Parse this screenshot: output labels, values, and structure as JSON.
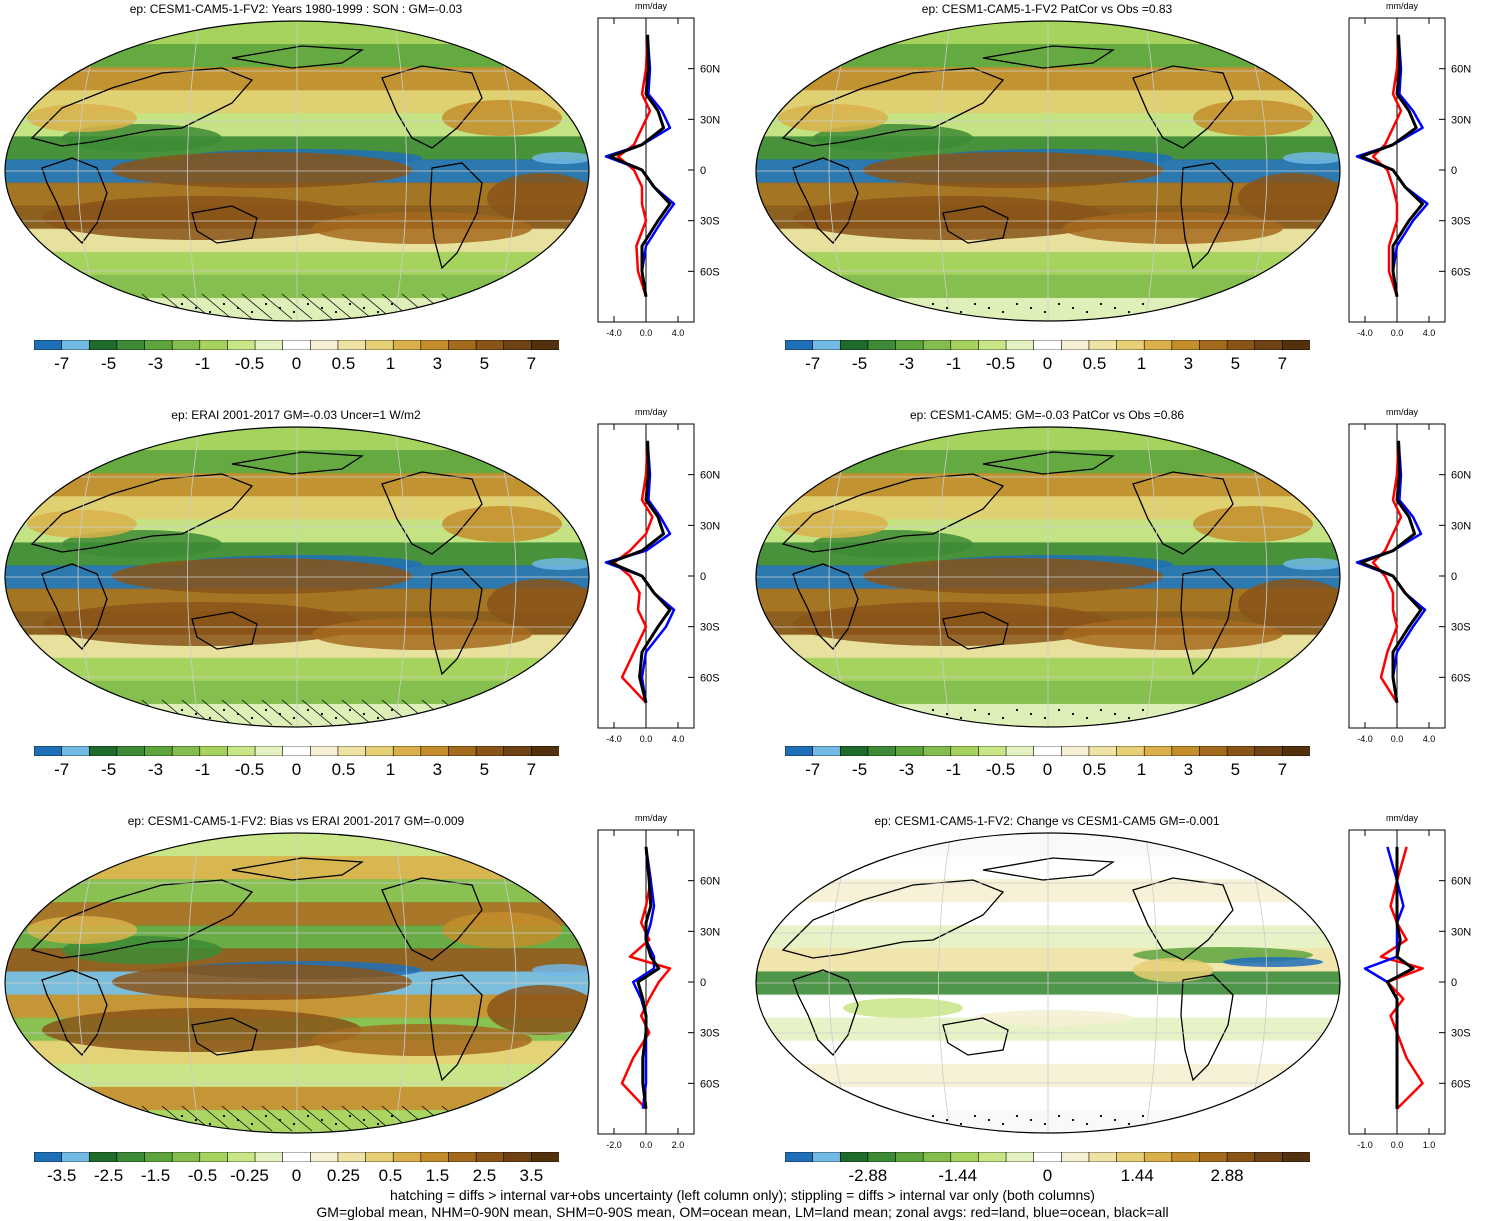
{
  "colors": {
    "scale": [
      "#1f6fb8",
      "#72b9e6",
      "#1e6b2c",
      "#3d8b36",
      "#5ea43e",
      "#82bd4e",
      "#a6d35e",
      "#c8e587",
      "#e4f2c1",
      "#ffffff",
      "#f5f0d3",
      "#efe2a5",
      "#e6cf74",
      "#d9b04a",
      "#c48d2c",
      "#a46a1d",
      "#8a5418",
      "#6e4214",
      "#53300e"
    ],
    "land_line": "#000000",
    "zonal_land": "#ff0000",
    "zonal_ocean": "#0000ff",
    "zonal_all": "#000000"
  },
  "zonal_axis": {
    "unit": "mm/day",
    "lat_ticks": [
      "60N",
      "30N",
      "0",
      "30S",
      "60S"
    ]
  },
  "panels": [
    {
      "id": "p1",
      "title": "ep: CESM1-CAM5-1-FV2: Years 1980-1999 : SON : GM=-0.03",
      "cb_labels": [
        "-7",
        "-5",
        "-3",
        "-1",
        "-0.5",
        "0",
        "0.5",
        "1",
        "3",
        "5",
        "7"
      ],
      "x_ticks": [
        "-4.0",
        "0.0",
        "4.0"
      ],
      "style": "mean",
      "hatch": true
    },
    {
      "id": "p2",
      "title": "ep: CESM1-CAM5-1-FV2 PatCor vs Obs =0.83",
      "cb_labels": [
        "-7",
        "-5",
        "-3",
        "-1",
        "-0.5",
        "0",
        "0.5",
        "1",
        "3",
        "5",
        "7"
      ],
      "x_ticks": [
        "-4.0",
        "0.0",
        "4.0"
      ],
      "style": "mean",
      "hatch": false
    },
    {
      "id": "p3",
      "title": "ep: ERAI 2001-2017 GM=-0.03 Uncer=1 W/m2",
      "cb_labels": [
        "-7",
        "-5",
        "-3",
        "-1",
        "-0.5",
        "0",
        "0.5",
        "1",
        "3",
        "5",
        "7"
      ],
      "x_ticks": [
        "-4.0",
        "0.0",
        "4.0"
      ],
      "style": "mean",
      "hatch": true
    },
    {
      "id": "p4",
      "title": "ep: CESM1-CAM5: GM=-0.03 PatCor vs Obs =0.86",
      "cb_labels": [
        "-7",
        "-5",
        "-3",
        "-1",
        "-0.5",
        "0",
        "0.5",
        "1",
        "3",
        "5",
        "7"
      ],
      "x_ticks": [
        "-4.0",
        "0.0",
        "4.0"
      ],
      "style": "mean",
      "hatch": false
    },
    {
      "id": "p5",
      "title": "ep: CESM1-CAM5-1-FV2: Bias vs ERAI 2001-2017  GM=-0.009",
      "cb_labels": [
        "-3.5",
        "-2.5",
        "-1.5",
        "-0.5",
        "-0.25",
        "0",
        "0.25",
        "0.5",
        "1.5",
        "2.5",
        "3.5"
      ],
      "x_ticks": [
        "-2.0",
        "0.0",
        "2.0"
      ],
      "style": "bias",
      "hatch": true
    },
    {
      "id": "p6",
      "title": "ep: CESM1-CAM5-1-FV2: Change vs CESM1-CAM5 GM=-0.001",
      "cb_labels": [
        "-2.88",
        "-1.44",
        "0",
        "1.44",
        "2.88"
      ],
      "x_ticks": [
        "-1.0",
        "0.0",
        "1.0"
      ],
      "style": "change",
      "hatch": false
    }
  ],
  "chart_data": [
    {
      "type": "heatmap",
      "title": "ep: CESM1-CAM5-1-FV2: Years 1980-1999 : SON : GM=-0.03",
      "colorbar_labels": [
        -7,
        -5,
        -3,
        -1,
        -0.5,
        0,
        0.5,
        1,
        3,
        5,
        7
      ],
      "zonal_mean": {
        "xlabel": "mm/day",
        "x_ticks": [
          -4.0,
          0.0,
          4.0
        ],
        "y_ticks": [
          "60N",
          "30N",
          "0",
          "30S",
          "60S"
        ],
        "lat": [
          80,
          60,
          45,
          35,
          25,
          15,
          8,
          0,
          -10,
          -20,
          -30,
          -45,
          -60,
          -75
        ],
        "series": [
          {
            "name": "red=land",
            "values": [
              0.2,
              0,
              -0.5,
              0.5,
              -0.5,
              -1.5,
              -3.5,
              -1.5,
              -0.5,
              -0.5,
              0,
              -1.2,
              -1,
              0
            ]
          },
          {
            "name": "blue=ocean",
            "values": [
              0.2,
              0.5,
              0.3,
              2.0,
              3.0,
              -0.5,
              -5.0,
              -0.5,
              1.0,
              3.5,
              2.0,
              0,
              -0.5,
              0
            ]
          },
          {
            "name": "black=all",
            "values": [
              0.2,
              0.3,
              0,
              1.5,
              2.2,
              -0.5,
              -4.5,
              -0.5,
              1.0,
              3.0,
              1.5,
              -0.5,
              -0.5,
              0
            ]
          }
        ]
      }
    },
    {
      "type": "heatmap",
      "title": "ep: CESM1-CAM5-1-FV2 PatCor vs Obs =0.83",
      "colorbar_labels": [
        -7,
        -5,
        -3,
        -1,
        -0.5,
        0,
        0.5,
        1,
        3,
        5,
        7
      ],
      "zonal_mean": {
        "xlabel": "mm/day",
        "x_ticks": [
          -4.0,
          0.0,
          4.0
        ],
        "y_ticks": [
          "60N",
          "30N",
          "0",
          "30S",
          "60S"
        ],
        "lat": [
          80,
          60,
          45,
          35,
          25,
          15,
          8,
          0,
          -10,
          -20,
          -30,
          -45,
          -60,
          -75
        ],
        "series": [
          {
            "name": "red=land",
            "values": [
              0.2,
              0,
              -0.5,
              0.5,
              -0.5,
              -1.5,
              -3.0,
              -1.2,
              -0.5,
              0,
              0,
              -1.0,
              -1,
              0
            ]
          },
          {
            "name": "blue=ocean",
            "values": [
              0.2,
              0.5,
              0.3,
              2.0,
              3.2,
              -0.5,
              -5.0,
              -0.5,
              1.0,
              3.8,
              2.0,
              0,
              -0.5,
              0
            ]
          },
          {
            "name": "black=all",
            "values": [
              0.2,
              0.3,
              0,
              1.5,
              2.4,
              -0.5,
              -4.5,
              -0.5,
              1.0,
              3.2,
              1.5,
              -0.5,
              -0.5,
              0
            ]
          }
        ]
      }
    },
    {
      "type": "heatmap",
      "title": "ep: ERAI 2001-2017 GM=-0.03 Uncer=1 W/m2",
      "colorbar_labels": [
        -7,
        -5,
        -3,
        -1,
        -0.5,
        0,
        0.5,
        1,
        3,
        5,
        7
      ],
      "zonal_mean": {
        "xlabel": "mm/day",
        "x_ticks": [
          -4.0,
          0.0,
          4.0
        ],
        "y_ticks": [
          "60N",
          "30N",
          "0",
          "30S",
          "60S"
        ],
        "lat": [
          80,
          60,
          45,
          35,
          25,
          15,
          8,
          0,
          -10,
          -20,
          -30,
          -45,
          -60,
          -75
        ],
        "series": [
          {
            "name": "red=land",
            "values": [
              0.2,
              0,
              -0.5,
              0.8,
              0,
              -2.0,
              -4.0,
              -2.0,
              -0.8,
              -1.0,
              0,
              -1.5,
              -3.0,
              0
            ]
          },
          {
            "name": "blue=ocean",
            "values": [
              0.2,
              0.5,
              0.3,
              1.8,
              3.0,
              0,
              -5.0,
              -0.5,
              1.0,
              3.5,
              2.5,
              0,
              -0.5,
              0
            ]
          },
          {
            "name": "black=all",
            "values": [
              0.2,
              0.3,
              0,
              1.5,
              2.2,
              -0.5,
              -4.5,
              -0.5,
              1.0,
              3.0,
              1.5,
              -0.5,
              -0.8,
              0
            ]
          }
        ]
      }
    },
    {
      "type": "heatmap",
      "title": "ep: CESM1-CAM5: GM=-0.03 PatCor vs Obs =0.86",
      "colorbar_labels": [
        -7,
        -5,
        -3,
        -1,
        -0.5,
        0,
        0.5,
        1,
        3,
        5,
        7
      ],
      "zonal_mean": {
        "xlabel": "mm/day",
        "x_ticks": [
          -4.0,
          0.0,
          4.0
        ],
        "y_ticks": [
          "60N",
          "30N",
          "0",
          "30S",
          "60S"
        ],
        "lat": [
          80,
          60,
          45,
          35,
          25,
          15,
          8,
          0,
          -10,
          -20,
          -30,
          -45,
          -60,
          -75
        ],
        "series": [
          {
            "name": "red=land",
            "values": [
              0.2,
              0,
              -0.5,
              0.5,
              -0.5,
              -1.5,
              -3.0,
              -1.5,
              -0.5,
              -0.5,
              0,
              -1.2,
              -2.0,
              0
            ]
          },
          {
            "name": "blue=ocean",
            "values": [
              0.2,
              0.5,
              0.3,
              2.0,
              3.0,
              -0.5,
              -5.0,
              -0.5,
              1.0,
              3.5,
              2.0,
              0,
              -0.5,
              0
            ]
          },
          {
            "name": "black=all",
            "values": [
              0.2,
              0.3,
              0,
              1.5,
              2.2,
              -0.5,
              -4.5,
              -0.5,
              1.0,
              3.0,
              1.5,
              -0.5,
              -0.5,
              0
            ]
          }
        ]
      }
    },
    {
      "type": "heatmap",
      "title": "ep: CESM1-CAM5-1-FV2: Bias vs ERAI 2001-2017  GM=-0.009",
      "colorbar_labels": [
        -3.5,
        -2.5,
        -1.5,
        -0.5,
        -0.25,
        0,
        0.25,
        0.5,
        1.5,
        2.5,
        3.5
      ],
      "zonal_mean": {
        "xlabel": "mm/day",
        "x_ticks": [
          -2.0,
          0.0,
          2.0
        ],
        "y_ticks": [
          "60N",
          "30N",
          "0",
          "30S",
          "60S"
        ],
        "lat": [
          80,
          60,
          45,
          35,
          25,
          15,
          8,
          0,
          -10,
          -20,
          -30,
          -45,
          -60,
          -75
        ],
        "series": [
          {
            "name": "red=land",
            "values": [
              0,
              0.3,
              0,
              -0.3,
              0.2,
              -1.0,
              1.5,
              0.8,
              0.2,
              -0.3,
              0.2,
              -0.8,
              -1.5,
              0
            ]
          },
          {
            "name": "blue=ocean",
            "values": [
              0,
              0.3,
              0.5,
              0.3,
              0,
              0.5,
              0.5,
              -0.8,
              -0.3,
              0,
              0,
              0,
              0,
              -0.2
            ]
          },
          {
            "name": "black=all",
            "values": [
              0,
              0.2,
              0.3,
              0,
              0,
              0.3,
              0.8,
              -0.5,
              -0.2,
              0,
              0,
              -0.2,
              -0.2,
              0
            ]
          }
        ]
      }
    },
    {
      "type": "heatmap",
      "title": "ep: CESM1-CAM5-1-FV2: Change vs CESM1-CAM5 GM=-0.001",
      "colorbar_labels": [
        -2.88,
        -1.44,
        0,
        1.44,
        2.88
      ],
      "zonal_mean": {
        "xlabel": "mm/day",
        "x_ticks": [
          -1.0,
          0.0,
          1.0
        ],
        "y_ticks": [
          "60N",
          "30N",
          "0",
          "30S",
          "60S"
        ],
        "lat": [
          80,
          60,
          45,
          35,
          25,
          15,
          8,
          0,
          -10,
          -20,
          -30,
          -45,
          -60,
          -75
        ],
        "series": [
          {
            "name": "red=land",
            "values": [
              0.3,
              0,
              -0.2,
              0,
              0.3,
              -0.5,
              0.8,
              -0.3,
              0.2,
              -0.2,
              0,
              0.3,
              0.8,
              0
            ]
          },
          {
            "name": "blue=ocean",
            "values": [
              -0.3,
              0,
              0.2,
              0,
              0,
              0,
              -1.0,
              -0.3,
              0,
              0,
              0,
              0,
              0,
              0
            ]
          },
          {
            "name": "black=all",
            "values": [
              0,
              0,
              0,
              0,
              0.1,
              0,
              0.5,
              -0.3,
              0,
              0,
              0,
              0,
              0,
              0
            ]
          }
        ]
      }
    }
  ],
  "footnote": {
    "line1": "hatching = diffs > internal var+obs uncertainty (left column only); stippling = diffs > internal var only (both columns)",
    "line2": "GM=global mean, NHM=0-90N mean, SHM=0-90S mean, OM=ocean mean, LM=land mean; zonal avgs: red=land, blue=ocean, black=all"
  }
}
